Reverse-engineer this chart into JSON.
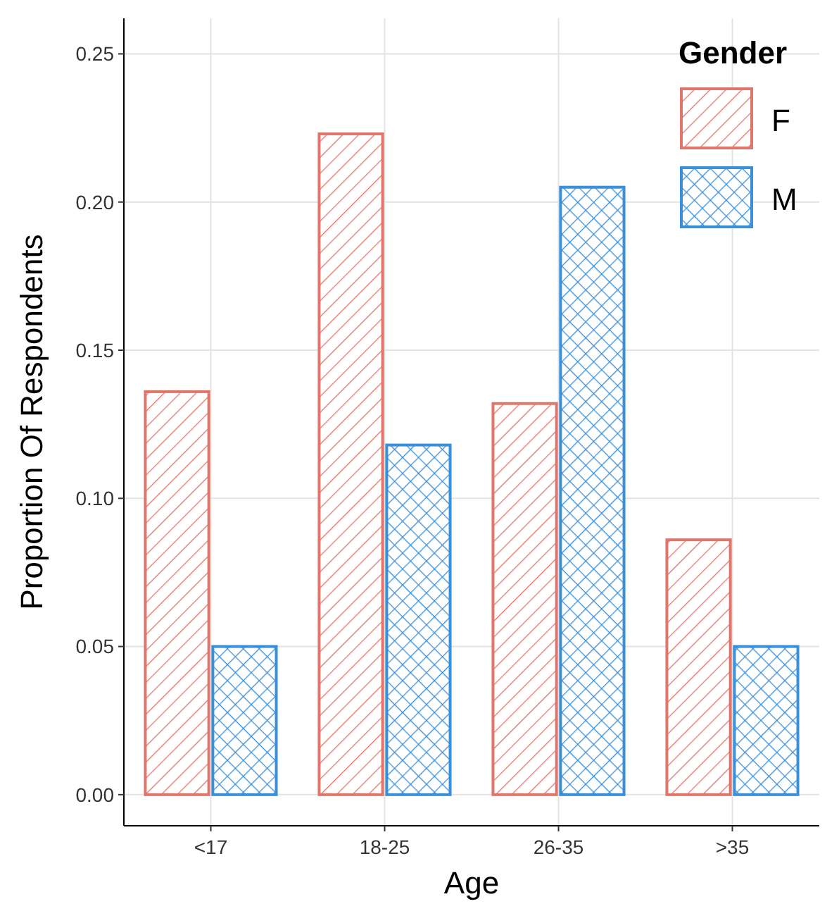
{
  "chart_data": {
    "type": "bar",
    "xlabel": "Age",
    "ylabel": "Proportion Of Respondents",
    "legend_title": "Gender",
    "categories": [
      "<17",
      "18-25",
      "26-35",
      ">35"
    ],
    "series": [
      {
        "name": "F",
        "color": "#e0766b",
        "values": [
          0.136,
          0.223,
          0.132,
          0.086
        ]
      },
      {
        "name": "M",
        "color": "#3a8fd9",
        "values": [
          0.05,
          0.118,
          0.205,
          0.05
        ]
      }
    ],
    "ylim": [
      -0.0105,
      0.262
    ],
    "yticks": [
      {
        "value": 0,
        "label": "0.00"
      },
      {
        "value": 0.05,
        "label": "0.05"
      },
      {
        "value": 0.1,
        "label": "0.10"
      },
      {
        "value": 0.15,
        "label": "0.15"
      },
      {
        "value": 0.2,
        "label": "0.20"
      },
      {
        "value": 0.25,
        "label": "0.25"
      }
    ],
    "grid": true,
    "legend": "top right"
  }
}
